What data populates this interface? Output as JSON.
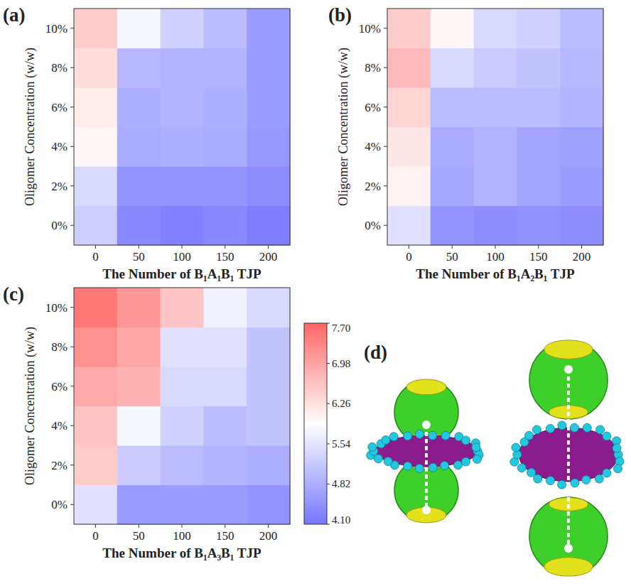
{
  "chart_data": [
    {
      "type": "heatmap",
      "label": "(a)",
      "x_label": "The Number of B₁A₁B₁ TJP",
      "y_label": "Oligomer Concentration (w/w)",
      "x_categories": [
        "0",
        "50",
        "100",
        "150",
        "200"
      ],
      "y_categories": [
        "0%",
        "2%",
        "4%",
        "6%",
        "8%",
        "10%"
      ],
      "cells": [
        [
          5.25,
          4.35,
          4.25,
          4.35,
          4.2
        ],
        [
          5.4,
          4.5,
          4.5,
          4.5,
          4.4
        ],
        [
          6.0,
          4.8,
          4.85,
          4.8,
          4.55
        ],
        [
          6.1,
          4.85,
          4.9,
          4.85,
          4.6
        ],
        [
          6.3,
          4.95,
          4.9,
          4.9,
          4.6
        ],
        [
          6.5,
          5.8,
          5.3,
          5.0,
          4.6
        ]
      ]
    },
    {
      "type": "heatmap",
      "label": "(b)",
      "x_label": "The Number of B₁A₂B₁ TJP",
      "y_label": "Oligomer Concentration (w/w)",
      "x_categories": [
        "0",
        "50",
        "100",
        "150",
        "200"
      ],
      "y_categories": [
        "0%",
        "2%",
        "4%",
        "6%",
        "8%",
        "10%"
      ],
      "cells": [
        [
          5.5,
          4.5,
          4.4,
          4.45,
          4.4
        ],
        [
          6.05,
          4.75,
          4.9,
          4.7,
          4.6
        ],
        [
          6.2,
          4.8,
          4.9,
          4.7,
          4.65
        ],
        [
          6.4,
          5.0,
          5.0,
          5.0,
          4.9
        ],
        [
          6.7,
          5.4,
          5.2,
          5.1,
          4.95
        ],
        [
          6.5,
          6.0,
          5.4,
          5.3,
          5.0
        ]
      ]
    },
    {
      "type": "heatmap",
      "label": "(c)",
      "x_label": "The Number of B₁A₃B₁ TJP",
      "y_label": "Oligomer Concentration (w/w)",
      "x_categories": [
        "0",
        "50",
        "100",
        "150",
        "200"
      ],
      "y_categories": [
        "0%",
        "2%",
        "4%",
        "6%",
        "8%",
        "10%"
      ],
      "cells": [
        [
          5.5,
          4.6,
          4.6,
          4.6,
          4.5
        ],
        [
          6.5,
          5.2,
          5.0,
          4.9,
          4.85
        ],
        [
          6.6,
          5.8,
          5.3,
          5.0,
          5.1
        ],
        [
          6.9,
          6.8,
          5.4,
          5.4,
          5.1
        ],
        [
          7.2,
          6.95,
          5.5,
          5.5,
          5.1
        ],
        [
          7.5,
          7.1,
          6.6,
          5.7,
          5.4
        ]
      ]
    }
  ],
  "colorbar": {
    "range": [
      4.1,
      7.7
    ],
    "ticks": [
      {
        "value": 4.1,
        "label": "4.10"
      },
      4.82,
      5.54,
      6.26,
      6.98,
      {
        "value": 7.7,
        "label": "7.70"
      }
    ]
  },
  "image_panel": {
    "label": "(d)"
  }
}
